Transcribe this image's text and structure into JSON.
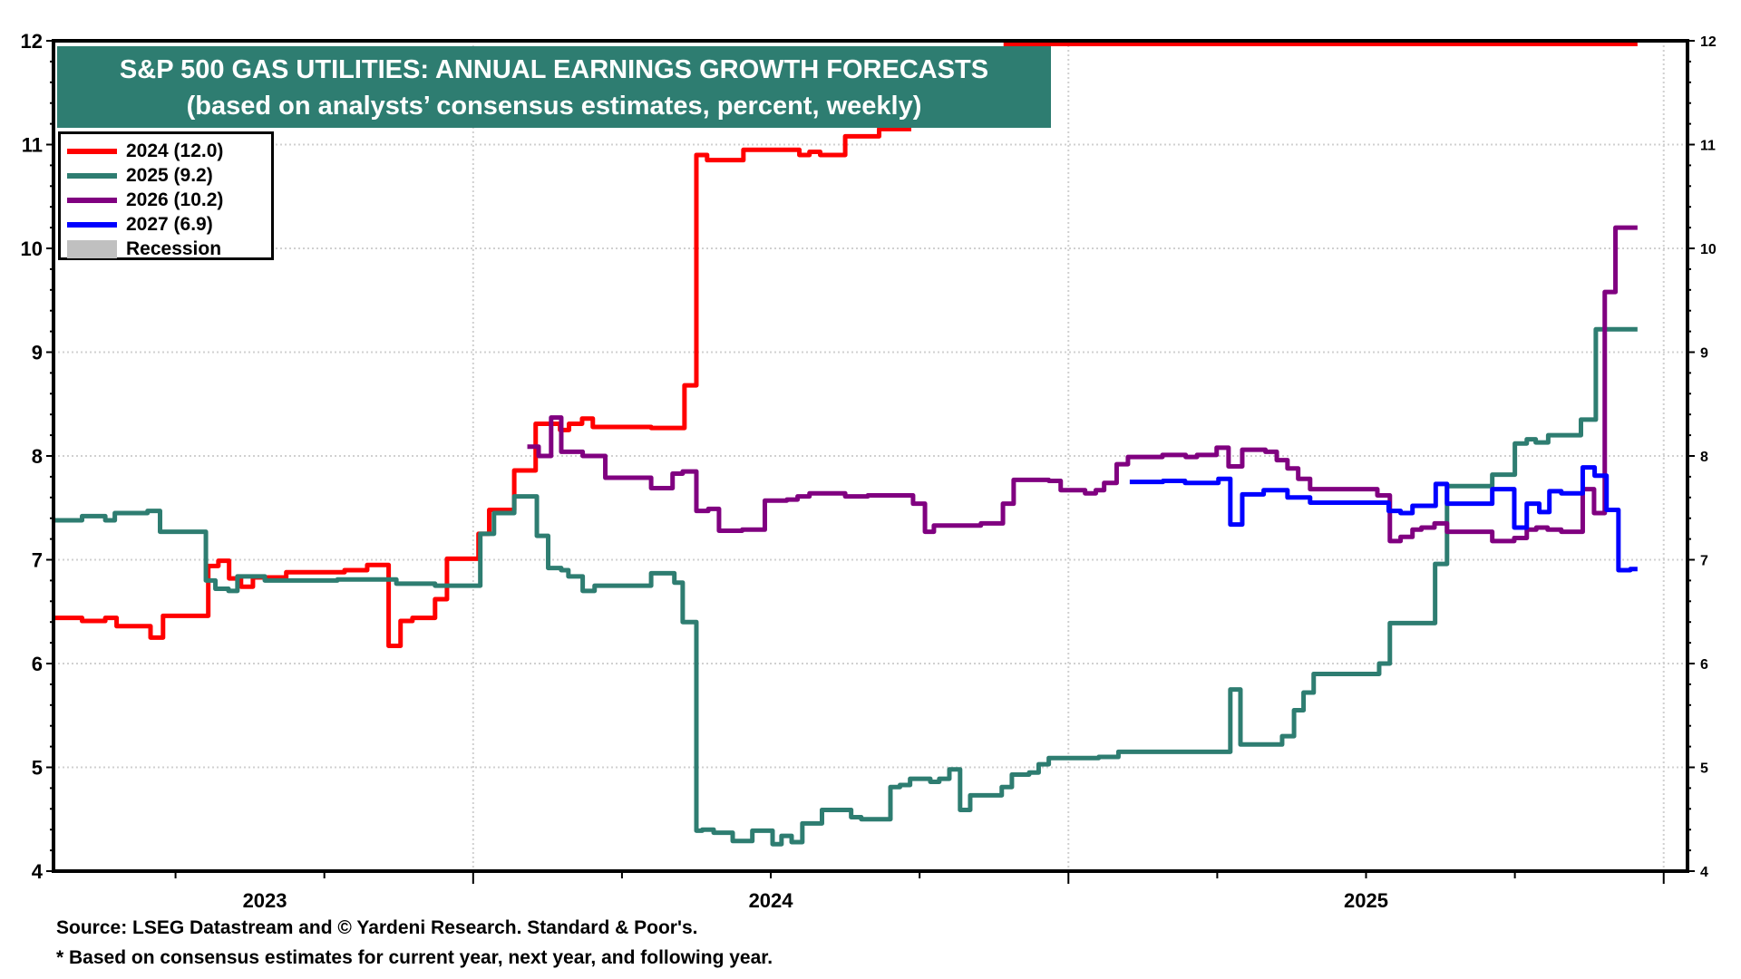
{
  "chart_data": {
    "type": "line",
    "step": true,
    "title": "S&P 500 GAS UTILITIES: ANNUAL EARNINGS GROWTH FORECASTS",
    "subtitle": "(based on analysts’ consensus estimates, percent, weekly)",
    "xlabel": "",
    "ylabel": "",
    "x_unit": "decimal year",
    "xlim": [
      2023.295,
      2026.04
    ],
    "ylim": [
      4,
      12
    ],
    "y_ticks": [
      4,
      5,
      6,
      7,
      8,
      9,
      10,
      11,
      12
    ],
    "y_tick_labels": [
      "4",
      "5",
      "6",
      "7",
      "8",
      "9",
      "10",
      "11",
      "12"
    ],
    "x_tick_labels": [
      {
        "label": "2023",
        "x": 2023.65
      },
      {
        "label": "2024",
        "x": 2024.5
      },
      {
        "label": "2025",
        "x": 2025.5
      }
    ],
    "x_major_ticks": [
      2024.0,
      2025.0,
      2026.0
    ],
    "x_minor_ticks": [
      2023.25,
      2023.5,
      2023.75,
      2024.25,
      2024.5,
      2024.75,
      2025.25,
      2025.5,
      2025.75
    ],
    "grid": true,
    "legend_position": "top-left",
    "legend": [
      {
        "label": "2024 (12.0)",
        "color": "#ff0000",
        "kind": "line"
      },
      {
        "label": "2025 (9.2)",
        "color": "#2e7d71",
        "kind": "line"
      },
      {
        "label": "2026 (10.2)",
        "color": "#800080",
        "kind": "line"
      },
      {
        "label": "2027 (6.9)",
        "color": "#0000ff",
        "kind": "line"
      },
      {
        "label": "Recession",
        "color": "#c0c0c0",
        "kind": "box"
      }
    ],
    "series": [
      {
        "name": "2024",
        "color": "#ff0000",
        "points": [
          [
            2023.295,
            6.44
          ],
          [
            2023.343,
            6.41
          ],
          [
            2023.382,
            6.44
          ],
          [
            2023.401,
            6.36
          ],
          [
            2023.458,
            6.25
          ],
          [
            2023.479,
            6.46
          ],
          [
            2023.555,
            6.94
          ],
          [
            2023.572,
            6.99
          ],
          [
            2023.59,
            6.82
          ],
          [
            2023.61,
            6.74
          ],
          [
            2023.63,
            6.83
          ],
          [
            2023.686,
            6.88
          ],
          [
            2023.784,
            6.9
          ],
          [
            2023.822,
            6.95
          ],
          [
            2023.858,
            6.17
          ],
          [
            2023.878,
            6.41
          ],
          [
            2023.898,
            6.44
          ],
          [
            2023.936,
            6.62
          ],
          [
            2023.956,
            7.01
          ],
          [
            2024.009,
            7.25
          ],
          [
            2024.027,
            7.48
          ],
          [
            2024.069,
            7.86
          ],
          [
            2024.105,
            8.31
          ],
          [
            2024.146,
            8.25
          ],
          [
            2024.161,
            8.31
          ],
          [
            2024.183,
            8.36
          ],
          [
            2024.201,
            8.28
          ],
          [
            2024.299,
            8.27
          ],
          [
            2024.355,
            8.68
          ],
          [
            2024.375,
            10.9
          ],
          [
            2024.393,
            10.85
          ],
          [
            2024.454,
            10.95
          ],
          [
            2024.548,
            10.9
          ],
          [
            2024.565,
            10.93
          ],
          [
            2024.583,
            10.9
          ],
          [
            2024.625,
            11.08
          ],
          [
            2024.682,
            11.15
          ],
          [
            2024.736,
            11.15
          ]
        ],
        "hidden_under_title_until": 2024.891,
        "points_after_title": [
          [
            2024.891,
            12.0
          ],
          [
            2025.956,
            12.0
          ]
        ]
      },
      {
        "name": "2025",
        "color": "#2e7d71",
        "points": [
          [
            2023.295,
            7.38
          ],
          [
            2023.343,
            7.42
          ],
          [
            2023.382,
            7.38
          ],
          [
            2023.398,
            7.45
          ],
          [
            2023.453,
            7.47
          ],
          [
            2023.474,
            7.27
          ],
          [
            2023.551,
            6.8
          ],
          [
            2023.567,
            6.72
          ],
          [
            2023.589,
            6.7
          ],
          [
            2023.604,
            6.84
          ],
          [
            2023.65,
            6.8
          ],
          [
            2023.772,
            6.81
          ],
          [
            2023.871,
            6.77
          ],
          [
            2023.936,
            6.75
          ],
          [
            2024.012,
            7.25
          ],
          [
            2024.035,
            7.45
          ],
          [
            2024.069,
            7.61
          ],
          [
            2024.107,
            7.23
          ],
          [
            2024.126,
            6.92
          ],
          [
            2024.148,
            6.9
          ],
          [
            2024.16,
            6.84
          ],
          [
            2024.184,
            6.7
          ],
          [
            2024.204,
            6.75
          ],
          [
            2024.299,
            6.87
          ],
          [
            2024.338,
            6.78
          ],
          [
            2024.352,
            6.4
          ],
          [
            2024.375,
            4.39
          ],
          [
            2024.385,
            4.4
          ],
          [
            2024.404,
            4.37
          ],
          [
            2024.436,
            4.29
          ],
          [
            2024.469,
            4.39
          ],
          [
            2024.503,
            4.26
          ],
          [
            2024.518,
            4.34
          ],
          [
            2024.535,
            4.28
          ],
          [
            2024.553,
            4.46
          ],
          [
            2024.586,
            4.59
          ],
          [
            2024.635,
            4.52
          ],
          [
            2024.652,
            4.5
          ],
          [
            2024.701,
            4.81
          ],
          [
            2024.717,
            4.83
          ],
          [
            2024.734,
            4.89
          ],
          [
            2024.768,
            4.86
          ],
          [
            2024.783,
            4.89
          ],
          [
            2024.8,
            4.98
          ],
          [
            2024.818,
            4.59
          ],
          [
            2024.835,
            4.73
          ],
          [
            2024.888,
            4.81
          ],
          [
            2024.905,
            4.93
          ],
          [
            2024.934,
            4.95
          ],
          [
            2024.95,
            5.03
          ],
          [
            2024.967,
            5.09
          ],
          [
            2025.051,
            5.1
          ],
          [
            2025.084,
            5.15
          ],
          [
            2025.272,
            5.75
          ],
          [
            2025.289,
            5.22
          ],
          [
            2025.359,
            5.3
          ],
          [
            2025.379,
            5.55
          ],
          [
            2025.395,
            5.72
          ],
          [
            2025.412,
            5.9
          ],
          [
            2025.522,
            6.0
          ],
          [
            2025.54,
            6.39
          ],
          [
            2025.616,
            6.96
          ],
          [
            2025.636,
            7.71
          ],
          [
            2025.712,
            7.82
          ],
          [
            2025.75,
            8.12
          ],
          [
            2025.77,
            8.16
          ],
          [
            2025.785,
            8.13
          ],
          [
            2025.806,
            8.2
          ],
          [
            2025.861,
            8.35
          ],
          [
            2025.886,
            9.22
          ],
          [
            2025.956,
            9.22
          ]
        ]
      },
      {
        "name": "2026",
        "color": "#800080",
        "points": [
          [
            2024.091,
            8.09
          ],
          [
            2024.11,
            8.0
          ],
          [
            2024.131,
            8.37
          ],
          [
            2024.148,
            8.04
          ],
          [
            2024.184,
            8.0
          ],
          [
            2024.222,
            7.79
          ],
          [
            2024.299,
            7.69
          ],
          [
            2024.335,
            7.83
          ],
          [
            2024.352,
            7.85
          ],
          [
            2024.375,
            7.47
          ],
          [
            2024.395,
            7.49
          ],
          [
            2024.413,
            7.28
          ],
          [
            2024.452,
            7.29
          ],
          [
            2024.49,
            7.57
          ],
          [
            2024.527,
            7.58
          ],
          [
            2024.545,
            7.61
          ],
          [
            2024.565,
            7.64
          ],
          [
            2024.625,
            7.61
          ],
          [
            2024.663,
            7.62
          ],
          [
            2024.739,
            7.54
          ],
          [
            2024.759,
            7.27
          ],
          [
            2024.774,
            7.33
          ],
          [
            2024.853,
            7.35
          ],
          [
            2024.89,
            7.54
          ],
          [
            2024.908,
            7.77
          ],
          [
            2024.967,
            7.76
          ],
          [
            2024.987,
            7.67
          ],
          [
            2025.028,
            7.64
          ],
          [
            2025.046,
            7.67
          ],
          [
            2025.06,
            7.74
          ],
          [
            2025.081,
            7.92
          ],
          [
            2025.1,
            7.99
          ],
          [
            2025.158,
            8.01
          ],
          [
            2025.197,
            7.99
          ],
          [
            2025.216,
            8.01
          ],
          [
            2025.249,
            8.08
          ],
          [
            2025.269,
            7.9
          ],
          [
            2025.292,
            8.06
          ],
          [
            2025.331,
            8.04
          ],
          [
            2025.35,
            7.96
          ],
          [
            2025.368,
            7.88
          ],
          [
            2025.386,
            7.78
          ],
          [
            2025.406,
            7.68
          ],
          [
            2025.519,
            7.62
          ],
          [
            2025.54,
            7.18
          ],
          [
            2025.558,
            7.22
          ],
          [
            2025.578,
            7.29
          ],
          [
            2025.593,
            7.31
          ],
          [
            2025.615,
            7.35
          ],
          [
            2025.636,
            7.27
          ],
          [
            2025.712,
            7.18
          ],
          [
            2025.749,
            7.21
          ],
          [
            2025.77,
            7.29
          ],
          [
            2025.786,
            7.31
          ],
          [
            2025.805,
            7.29
          ],
          [
            2025.828,
            7.27
          ],
          [
            2025.864,
            7.68
          ],
          [
            2025.883,
            7.45
          ],
          [
            2025.901,
            9.58
          ],
          [
            2025.919,
            10.2
          ],
          [
            2025.956,
            10.2
          ]
        ]
      },
      {
        "name": "2027",
        "color": "#0000ff",
        "points": [
          [
            2025.103,
            7.75
          ],
          [
            2025.159,
            7.76
          ],
          [
            2025.196,
            7.74
          ],
          [
            2025.252,
            7.78
          ],
          [
            2025.272,
            7.34
          ],
          [
            2025.292,
            7.63
          ],
          [
            2025.328,
            7.67
          ],
          [
            2025.368,
            7.6
          ],
          [
            2025.406,
            7.55
          ],
          [
            2025.538,
            7.47
          ],
          [
            2025.558,
            7.45
          ],
          [
            2025.578,
            7.52
          ],
          [
            2025.617,
            7.73
          ],
          [
            2025.636,
            7.54
          ],
          [
            2025.712,
            7.68
          ],
          [
            2025.749,
            7.31
          ],
          [
            2025.77,
            7.54
          ],
          [
            2025.791,
            7.46
          ],
          [
            2025.808,
            7.66
          ],
          [
            2025.828,
            7.64
          ],
          [
            2025.864,
            7.89
          ],
          [
            2025.884,
            7.81
          ],
          [
            2025.904,
            7.48
          ],
          [
            2025.924,
            6.9
          ],
          [
            2025.944,
            6.91
          ],
          [
            2025.956,
            6.91
          ]
        ]
      }
    ]
  },
  "title": {
    "line1": "S&P 500 GAS UTILITIES: ANNUAL EARNINGS GROWTH FORECASTS",
    "line2": "(based on analysts’ consensus estimates, percent, weekly)"
  },
  "legend": {
    "items": [
      {
        "label": "2024 (12.0)"
      },
      {
        "label": "2025 (9.2)"
      },
      {
        "label": "2026 (10.2)"
      },
      {
        "label": "2027 (6.9)"
      },
      {
        "label": "Recession"
      }
    ]
  },
  "footer": {
    "source": "Source: LSEG Datastream and © Yardeni Research. Standard & Poor's.",
    "note": "* Based on consensus estimates for current year, next year, and following year."
  }
}
